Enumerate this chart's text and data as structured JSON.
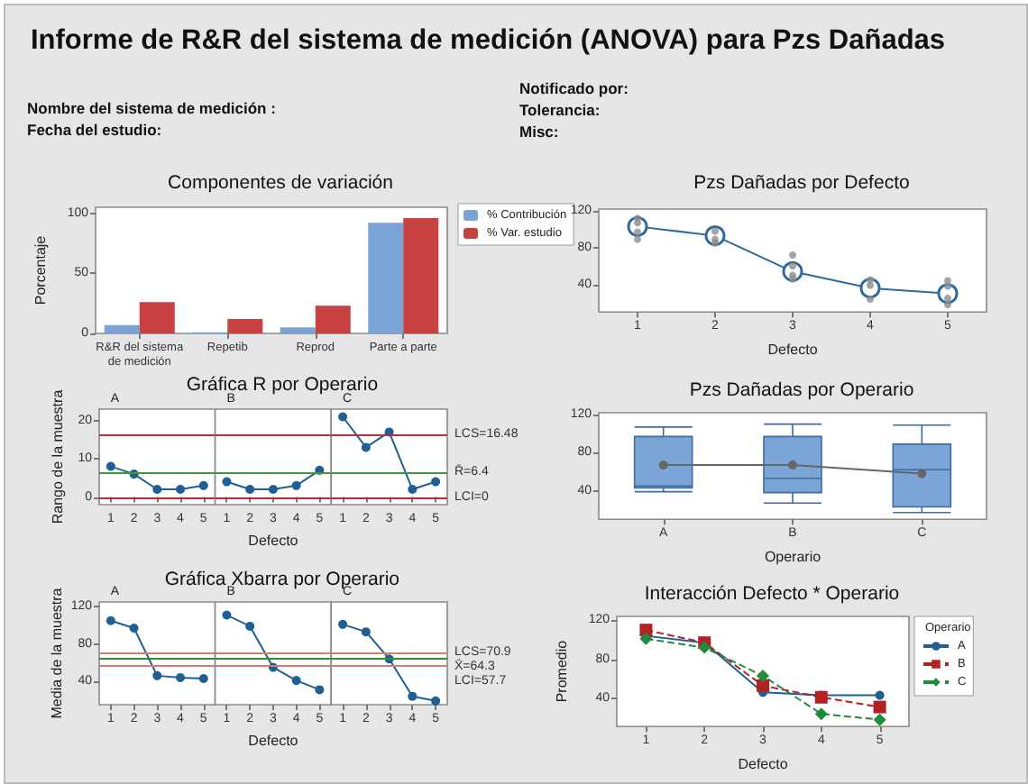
{
  "chart_data": [
    {
      "type": "other",
      "title": "Informe de R&R del sistema de medición  (ANOVA) para Pzs Dañadas",
      "annotations": [
        "Nombre del sistema de medición :",
        "Fecha del estudio:",
        "Notificado por:",
        "Tolerancia:",
        "Misc:"
      ]
    },
    {
      "type": "bar",
      "title": "Componentes de variación",
      "ylabel": "Porcentaje",
      "categories": [
        "R&R del sistema de medición",
        "Repetib",
        "Reprod",
        "Parte a parte"
      ],
      "ylim": [
        0,
        105
      ],
      "yticks": [
        0,
        50,
        100
      ],
      "legend": "right",
      "series": [
        {
          "name": "% Contribución",
          "color": "#7ba3d6",
          "values": [
            7,
            1,
            5,
            92
          ]
        },
        {
          "name": "% Var. estudio",
          "color": "#c84141",
          "values": [
            26,
            12,
            23,
            96
          ]
        }
      ]
    },
    {
      "type": "line",
      "ylabel": "Rango de la muestra",
      "categories": [
        "1",
        "2",
        "3",
        "4",
        "5"
      ],
      "ylim": [
        -2,
        23
      ],
      "yticks": [
        0,
        10,
        20
      ],
      "marker": "circle",
      "annotations": [
        "A"
      ],
      "series": [
        {
          "color": "#1f5f94",
          "values": [
            8,
            6,
            2,
            2,
            3
          ]
        }
      ],
      "ref_lines": [
        {
          "axis": "y",
          "value": 16.48,
          "color": "#b03030"
        },
        {
          "axis": "y",
          "value": 6.4,
          "color": "#3a9a3a"
        },
        {
          "axis": "y",
          "value": 0,
          "color": "#b03030"
        }
      ]
    },
    {
      "type": "line",
      "title": "Gráfica R por Operario",
      "xlabel": "Defecto",
      "categories": [
        "1",
        "2",
        "3",
        "4",
        "5"
      ],
      "ylim": [
        -2,
        23
      ],
      "yticks": [
        0,
        10,
        20
      ],
      "tick_labels": "x",
      "marker": "circle",
      "annotations": [
        "B"
      ],
      "series": [
        {
          "color": "#1f5f94",
          "values": [
            4,
            2,
            2,
            3,
            7
          ]
        }
      ],
      "ref_lines": [
        {
          "axis": "y",
          "value": 16.48,
          "color": "#b03030"
        },
        {
          "axis": "y",
          "value": 6.4,
          "color": "#3a9a3a"
        },
        {
          "axis": "y",
          "value": 0,
          "color": "#b03030"
        }
      ]
    },
    {
      "type": "line",
      "categories": [
        "1",
        "2",
        "3",
        "4",
        "5"
      ],
      "ylim": [
        -2,
        23
      ],
      "yticks": [
        0,
        10,
        20
      ],
      "tick_labels": "x",
      "marker": "circle",
      "annotations": [
        "C"
      ],
      "series": [
        {
          "color": "#1f5f94",
          "values": [
            21,
            13,
            17,
            2,
            4
          ]
        }
      ],
      "ref_lines": [
        {
          "axis": "y",
          "value": 16.48,
          "label": "LCS=16.48",
          "color": "#b03030"
        },
        {
          "axis": "y",
          "value": 6.4,
          "label": "R̄=6.4",
          "color": "#3a9a3a"
        },
        {
          "axis": "y",
          "value": 0,
          "label": "LCI=0",
          "color": "#b03030"
        }
      ]
    },
    {
      "type": "line",
      "ylabel": "Media de la muestra",
      "categories": [
        "1",
        "2",
        "3",
        "4",
        "5"
      ],
      "ylim": [
        15,
        125
      ],
      "yticks": [
        40,
        80,
        120
      ],
      "marker": "circle",
      "annotations": [
        "A"
      ],
      "series": [
        {
          "color": "#1f5f94",
          "values": [
            105,
            97,
            46,
            44,
            43
          ]
        }
      ],
      "ref_lines": [
        {
          "axis": "y",
          "value": 70.9,
          "color": "#d08070"
        },
        {
          "axis": "y",
          "value": 64.3,
          "color": "#2e8b3e"
        },
        {
          "axis": "y",
          "value": 57.7,
          "color": "#d08070"
        }
      ]
    },
    {
      "type": "line",
      "title": "Gráfica Xbarra por Operario",
      "xlabel": "Defecto",
      "categories": [
        "1",
        "2",
        "3",
        "4",
        "5"
      ],
      "ylim": [
        15,
        125
      ],
      "yticks": [
        40,
        80,
        120
      ],
      "tick_labels": "x",
      "marker": "circle",
      "annotations": [
        "B"
      ],
      "series": [
        {
          "color": "#1f5f94",
          "values": [
            111,
            99,
            55,
            41,
            31
          ]
        }
      ],
      "ref_lines": [
        {
          "axis": "y",
          "value": 70.9,
          "color": "#d08070"
        },
        {
          "axis": "y",
          "value": 64.3,
          "color": "#2e8b3e"
        },
        {
          "axis": "y",
          "value": 57.7,
          "color": "#d08070"
        }
      ]
    },
    {
      "type": "line",
      "categories": [
        "1",
        "2",
        "3",
        "4",
        "5"
      ],
      "ylim": [
        15,
        125
      ],
      "yticks": [
        40,
        80,
        120
      ],
      "tick_labels": "x",
      "marker": "circle",
      "annotations": [
        "C"
      ],
      "series": [
        {
          "color": "#1f5f94",
          "values": [
            101,
            93,
            64,
            24,
            19
          ]
        }
      ],
      "ref_lines": [
        {
          "axis": "y",
          "value": 70.9,
          "label": "LCS=70.9",
          "color": "#d08070"
        },
        {
          "axis": "y",
          "value": 64.3,
          "label": "X̄=64.3",
          "color": "#2e8b3e"
        },
        {
          "axis": "y",
          "value": 57.7,
          "label": "LCI=57.7",
          "color": "#d08070"
        }
      ]
    },
    {
      "type": "scatter",
      "title": "Pzs Dañadas por Defecto",
      "xlabel": "Defecto",
      "categories": [
        "1",
        "2",
        "3",
        "4",
        "5"
      ],
      "ylim": [
        10,
        122
      ],
      "yticks": [
        40,
        80,
        120
      ],
      "series": [
        {
          "color": "#8c8c8c",
          "x": [
            "1",
            "1",
            "1",
            "1",
            "2",
            "2",
            "2",
            "3",
            "3",
            "3",
            "3",
            "4",
            "4",
            "4",
            "5",
            "5",
            "5",
            "5"
          ],
          "values": [
            89,
            97,
            107,
            112,
            85,
            89,
            98,
            46,
            50,
            60,
            72,
            24,
            39,
            45,
            18,
            25,
            38,
            44
          ]
        },
        {
          "type": "line",
          "color": "#2c6aa0",
          "marker": "circle",
          "values": [
            103,
            93,
            54,
            36,
            30
          ]
        }
      ]
    },
    {
      "type": "box",
      "title": "Pzs Dañadas por Operario",
      "xlabel": "Operario",
      "categories": [
        "A",
        "B",
        "C"
      ],
      "ylim": [
        10,
        122
      ],
      "yticks": [
        40,
        80,
        120
      ],
      "series": [
        {
          "color": "#7ba5d6",
          "boxes": [
            {
              "low": 39,
              "q1": 43,
              "median": 45,
              "q3": 97,
              "high": 107
            },
            {
              "low": 27,
              "q1": 38,
              "median": 53,
              "q3": 97,
              "high": 110
            },
            {
              "low": 17,
              "q1": 23,
              "median": 62,
              "q3": 89,
              "high": 109
            }
          ]
        },
        {
          "type": "line",
          "color": "#666666",
          "marker": "circle",
          "values": [
            67,
            67,
            58
          ]
        }
      ]
    },
    {
      "type": "line",
      "title": "Interacción Defecto * Operario",
      "xlabel": "Defecto",
      "ylabel": "Promedio",
      "categories": [
        "1",
        "2",
        "3",
        "4",
        "5"
      ],
      "ylim": [
        11,
        124
      ],
      "yticks": [
        40,
        80,
        120
      ],
      "legend": "right",
      "legend_title": "Operario",
      "series": [
        {
          "name": "A",
          "color": "#1f5f94",
          "marker": "circle",
          "line_style": "solid",
          "values": [
            104,
            97,
            46,
            43,
            43
          ]
        },
        {
          "name": "B",
          "color": "#b22222",
          "marker": "square",
          "line_style": "dashed",
          "values": [
            110,
            97,
            53,
            41,
            31
          ]
        },
        {
          "name": "C",
          "color": "#1e8c3a",
          "marker": "diamond",
          "line_style": "dashed",
          "values": [
            101,
            92,
            63,
            24,
            18
          ]
        }
      ]
    }
  ]
}
